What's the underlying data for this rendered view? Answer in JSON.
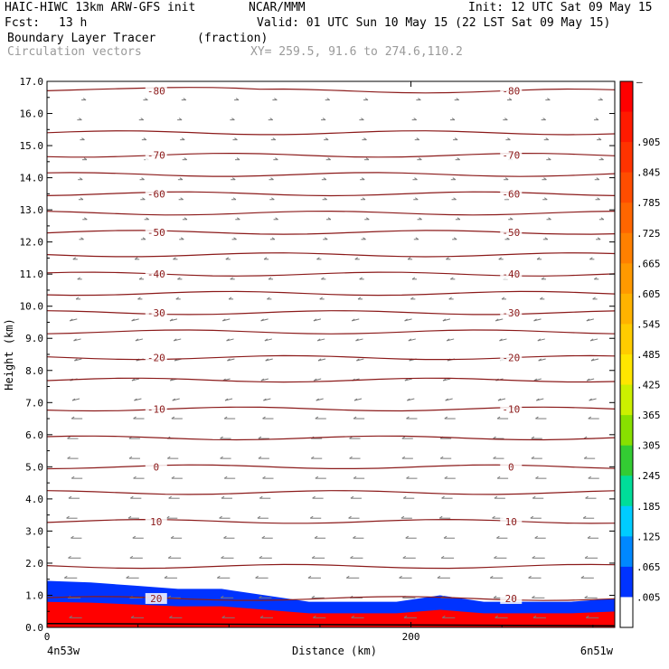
{
  "header": {
    "model": "HAIC-HIWC 13km ARW-GFS init",
    "org": "NCAR/MMM",
    "init": "Init: 12 UTC Sat 09 May 15",
    "fcst_label": "Fcst:",
    "fcst_value": "13 h",
    "valid": "Valid: 01 UTC Sun 10 May 15 (22 LST Sat 09 May 15)",
    "field": "Boundary Layer Tracer",
    "field_units": "(fraction)",
    "overlay": "Circulation vectors",
    "xy": "XY= 259.5, 91.6 to 274.6,110.2"
  },
  "colors": {
    "contour": "#8b1a1a",
    "vector": "#7a7a7a",
    "frame": "#000000"
  },
  "chart_data": {
    "type": "heatmap",
    "ylabel": "Height (km)",
    "xlabel": "Distance (km)",
    "ylim": [
      0,
      17
    ],
    "xlim": [
      0,
      312
    ],
    "y_ticks": [
      "0.0",
      "1.0",
      "2.0",
      "3.0",
      "4.0",
      "5.0",
      "6.0",
      "7.0",
      "8.0",
      "9.0",
      "10.0",
      "11.0",
      "12.0",
      "13.0",
      "14.0",
      "15.0",
      "16.0",
      "17.0"
    ],
    "x_ticks": [
      {
        "value": 0,
        "label": "0"
      },
      {
        "value": 200,
        "label": "200"
      }
    ],
    "x_endpoints": {
      "left": "4n53w",
      "right": "6n51w"
    },
    "colorbar": {
      "labels": [
        "–",
        ".905",
        ".845",
        ".785",
        ".725",
        ".665",
        ".605",
        ".545",
        ".485",
        ".425",
        ".365",
        ".305",
        ".245",
        ".185",
        ".125",
        ".065",
        ".005"
      ],
      "colors": [
        "#ff0000",
        "#ff1a00",
        "#ff3300",
        "#ff4d00",
        "#ff6600",
        "#ff8000",
        "#ff9900",
        "#ffb300",
        "#ffcc00",
        "#ffe600",
        "#ccf000",
        "#88e000",
        "#33cc33",
        "#00dd99",
        "#00ccff",
        "#0088ff",
        "#0033ff",
        "#ffffff"
      ]
    },
    "contours": [
      {
        "label": "-80",
        "y": 16.7
      },
      {
        "label": "-70",
        "y": 14.7
      },
      {
        "label": "-60",
        "y": 13.5
      },
      {
        "label": "-50",
        "y": 12.3
      },
      {
        "label": "-40",
        "y": 11.0
      },
      {
        "label": "-30",
        "y": 9.8
      },
      {
        "label": "-20",
        "y": 8.4
      },
      {
        "label": "-10",
        "y": 6.8
      },
      {
        "label": "0",
        "y": 5.0
      },
      {
        "label": "10",
        "y": 3.3
      },
      {
        "label": "20",
        "y": 0.9
      }
    ],
    "unlabeled_contours": [
      15.4,
      14.1,
      12.9,
      11.6,
      10.4,
      9.2,
      7.7,
      5.9,
      4.2,
      1.9
    ],
    "tracer_top_km": [
      1.45,
      1.4,
      1.3,
      1.2,
      1.2,
      1.0,
      0.8,
      0.8,
      0.8,
      1.0,
      0.8,
      0.8,
      0.8,
      0.9
    ],
    "vector_columns_km": [
      20,
      50,
      75,
      100,
      125,
      150,
      175,
      200,
      225,
      250,
      275,
      300
    ]
  }
}
